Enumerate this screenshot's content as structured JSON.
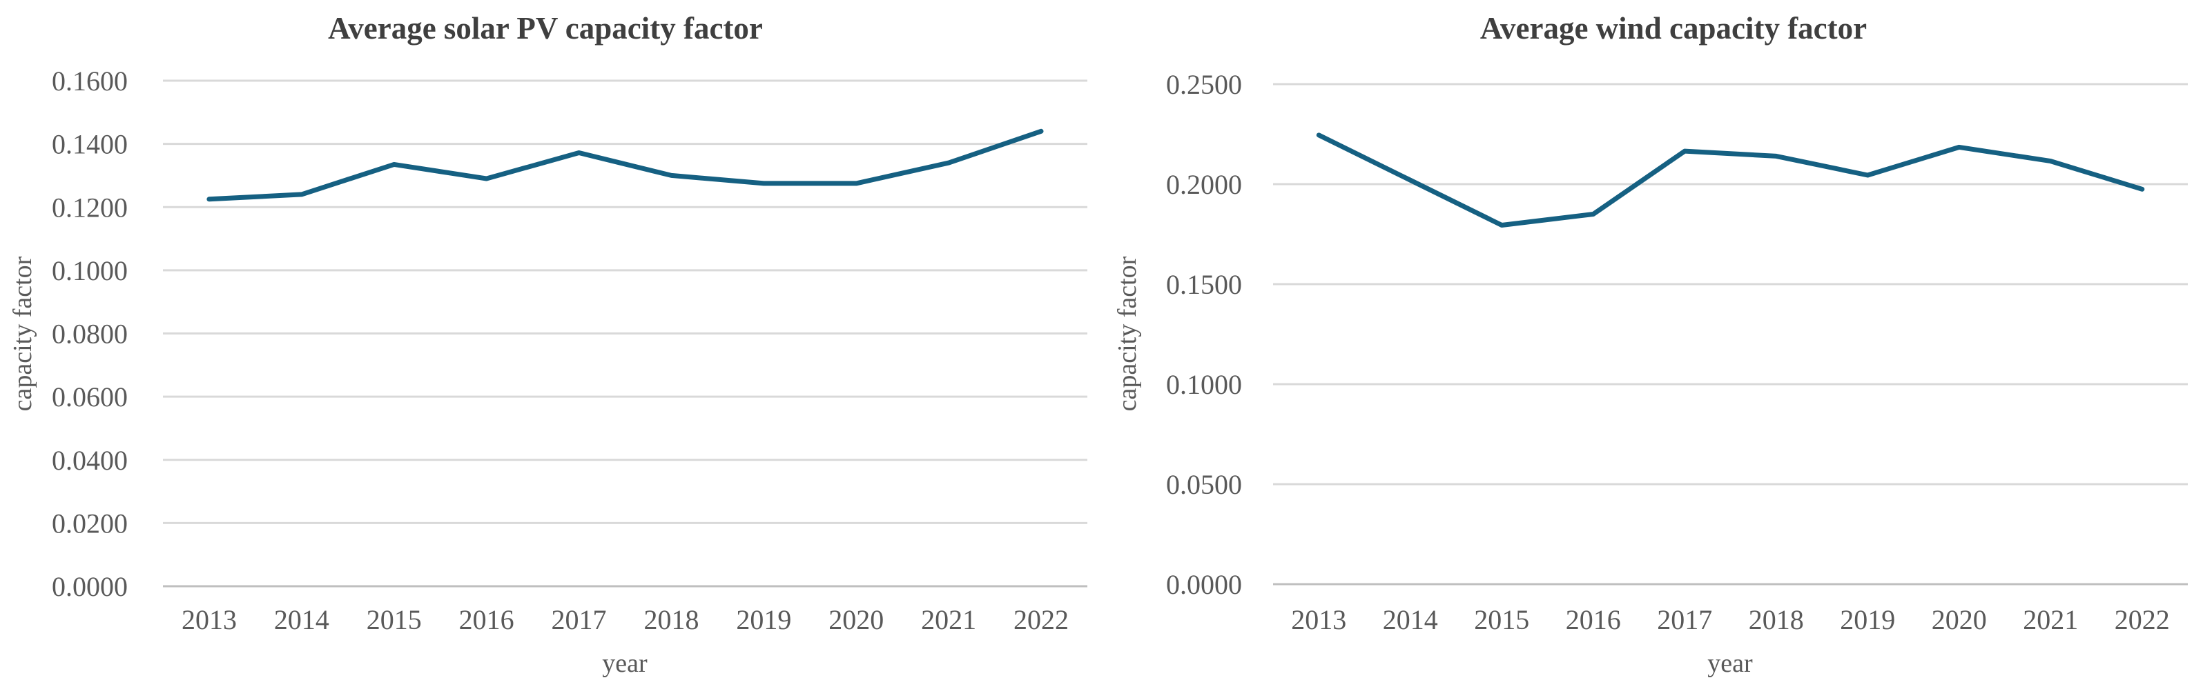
{
  "figure": {
    "background": "#FFFFFF",
    "panel_count": 2
  },
  "style": {
    "line_color": "#156082",
    "gridline_color": "#D9D9D9",
    "axis_line_color": "#BFBFBF",
    "title_color": "#3F3F3F",
    "tick_label_color": "#595959",
    "axis_title_color": "#595959"
  },
  "chart_data": [
    {
      "type": "line",
      "title": "Average solar PV capacity factor",
      "xlabel": "year",
      "ylabel": "capacity factor",
      "categories": [
        "2013",
        "2014",
        "2015",
        "2016",
        "2017",
        "2018",
        "2019",
        "2020",
        "2021",
        "2022"
      ],
      "values": [
        0.1225,
        0.124,
        0.1335,
        0.129,
        0.1372,
        0.13,
        0.1275,
        0.1275,
        0.134,
        0.144
      ],
      "ylim": [
        0.0,
        0.16
      ],
      "yticks": [
        0.0,
        0.02,
        0.04,
        0.06,
        0.08,
        0.1,
        0.12,
        0.14,
        0.16
      ],
      "ytick_labels": [
        "0.0000",
        "0.0200",
        "0.0400",
        "0.0600",
        "0.0800",
        "0.1000",
        "0.1200",
        "0.1400",
        "0.1600"
      ],
      "grid": true,
      "legend": "none",
      "line_color": "#156082"
    },
    {
      "type": "line",
      "title": "Average wind capacity factor",
      "xlabel": "year",
      "ylabel": "capacity factor",
      "categories": [
        "2013",
        "2014",
        "2015",
        "2016",
        "2017",
        "2018",
        "2019",
        "2020",
        "2021",
        "2022"
      ],
      "values": [
        0.2245,
        0.202,
        0.1795,
        0.185,
        0.2165,
        0.214,
        0.2045,
        0.2185,
        0.2115,
        0.1975
      ],
      "ylim": [
        0.0,
        0.25
      ],
      "yticks": [
        0.0,
        0.05,
        0.1,
        0.15,
        0.2,
        0.25
      ],
      "ytick_labels": [
        "0.0000",
        "0.0500",
        "0.1000",
        "0.1500",
        "0.2000",
        "0.2500"
      ],
      "grid": true,
      "legend": "none",
      "line_color": "#156082"
    }
  ]
}
